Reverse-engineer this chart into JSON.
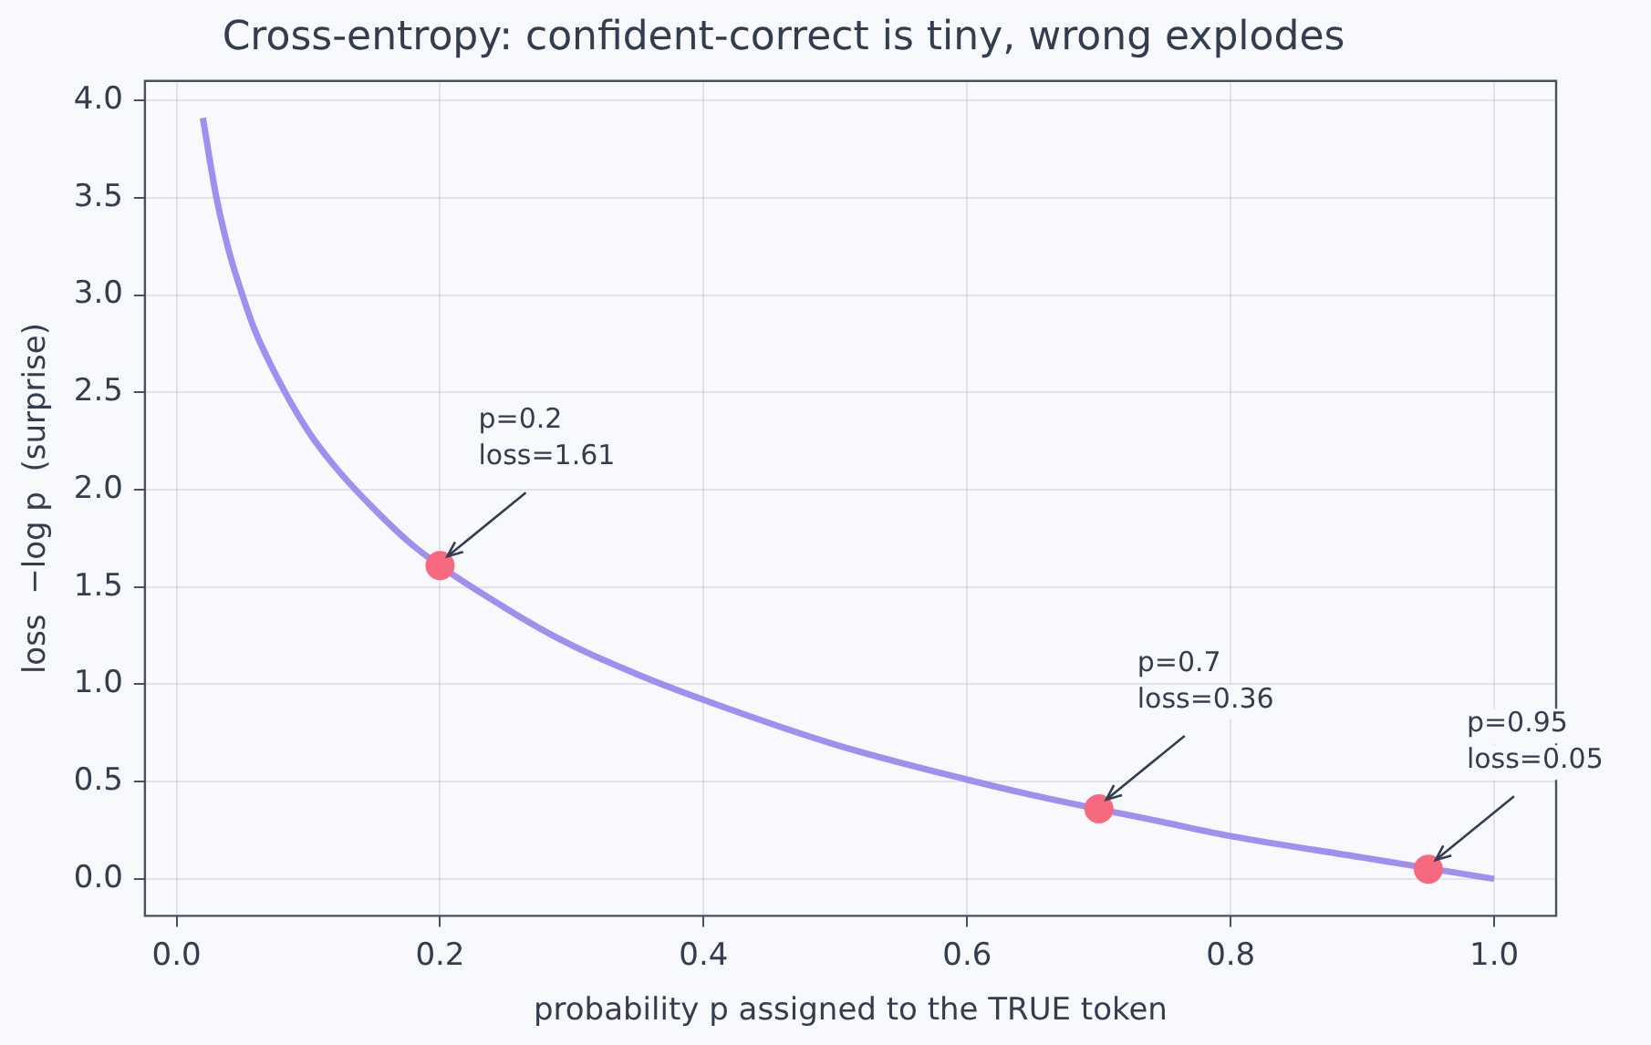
{
  "chart_data": {
    "type": "line",
    "title": "Cross-entropy: confident-correct is tiny, wrong explodes",
    "xlabel": "probability p assigned to the TRUE token",
    "ylabel": "loss  −log p  (surprise)",
    "x": [
      0.02,
      0.03,
      0.04,
      0.05,
      0.06,
      0.08,
      0.1,
      0.12,
      0.15,
      0.18,
      0.25,
      0.3,
      0.35,
      0.4,
      0.5,
      0.6,
      0.65,
      0.75,
      0.8,
      0.9,
      1.0
    ],
    "series": [
      {
        "type": "line",
        "color": "#a18ff0",
        "marker": "none",
        "values": [
          3.91,
          3.51,
          3.22,
          3.0,
          2.81,
          2.53,
          2.3,
          2.12,
          1.9,
          1.71,
          1.39,
          1.2,
          1.05,
          0.92,
          0.69,
          0.51,
          0.43,
          0.29,
          0.22,
          0.11,
          0.0
        ]
      },
      {
        "type": "scatter",
        "color": "#f7697f",
        "marker": "circle",
        "x": [
          0.2,
          0.7,
          0.95
        ],
        "values": [
          1.61,
          0.36,
          0.05
        ]
      }
    ],
    "annotations": [
      {
        "text": "p=0.2\nloss=1.61",
        "x": 0.2,
        "y": 1.61
      },
      {
        "text": "p=0.7\nloss=0.36",
        "x": 0.7,
        "y": 0.36
      },
      {
        "text": "p=0.95\nloss=0.05",
        "x": 0.95,
        "y": 0.05
      }
    ],
    "xlim": [
      -0.024,
      1.047
    ],
    "xticks": [
      {
        "value": 0,
        "label": "0.0"
      },
      0.2,
      0.4,
      0.6,
      0.8,
      {
        "value": 1,
        "label": "1.0"
      }
    ],
    "ylim": [
      -0.19,
      4.1
    ],
    "yticks": [
      {
        "value": 0,
        "label": "0.0"
      },
      0.5,
      {
        "value": 1,
        "label": "1.0"
      },
      1.5,
      {
        "value": 2,
        "label": "2.0"
      },
      2.5,
      {
        "value": 3,
        "label": "3.0"
      },
      3.5,
      {
        "value": 4,
        "label": "4.0"
      }
    ],
    "grid": true,
    "legend": false
  }
}
